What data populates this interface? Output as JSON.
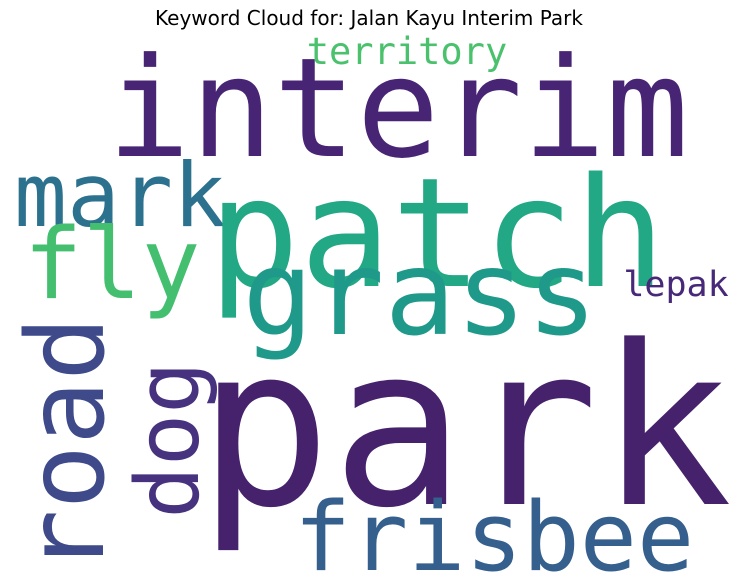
{
  "title": "Keyword Cloud for: Jalan Kayu Interim Park",
  "words": [
    {
      "text": "interim",
      "color": "#482475",
      "orientation": "horizontal"
    },
    {
      "text": "territory",
      "color": "#4ac16d",
      "orientation": "horizontal"
    },
    {
      "text": "mark",
      "color": "#2c728e",
      "orientation": "horizontal"
    },
    {
      "text": "patch",
      "color": "#22a884",
      "orientation": "horizontal"
    },
    {
      "text": "fly",
      "color": "#44bf70",
      "orientation": "horizontal"
    },
    {
      "text": "grass",
      "color": "#1f9a8a",
      "orientation": "horizontal"
    },
    {
      "text": "lepak",
      "color": "#482878",
      "orientation": "horizontal"
    },
    {
      "text": "road",
      "color": "#3e4a89",
      "orientation": "vertical"
    },
    {
      "text": "dog",
      "color": "#46327e",
      "orientation": "vertical"
    },
    {
      "text": "park",
      "color": "#46216c",
      "orientation": "horizontal"
    },
    {
      "text": "frisbee",
      "color": "#355f8d",
      "orientation": "horizontal"
    }
  ]
}
